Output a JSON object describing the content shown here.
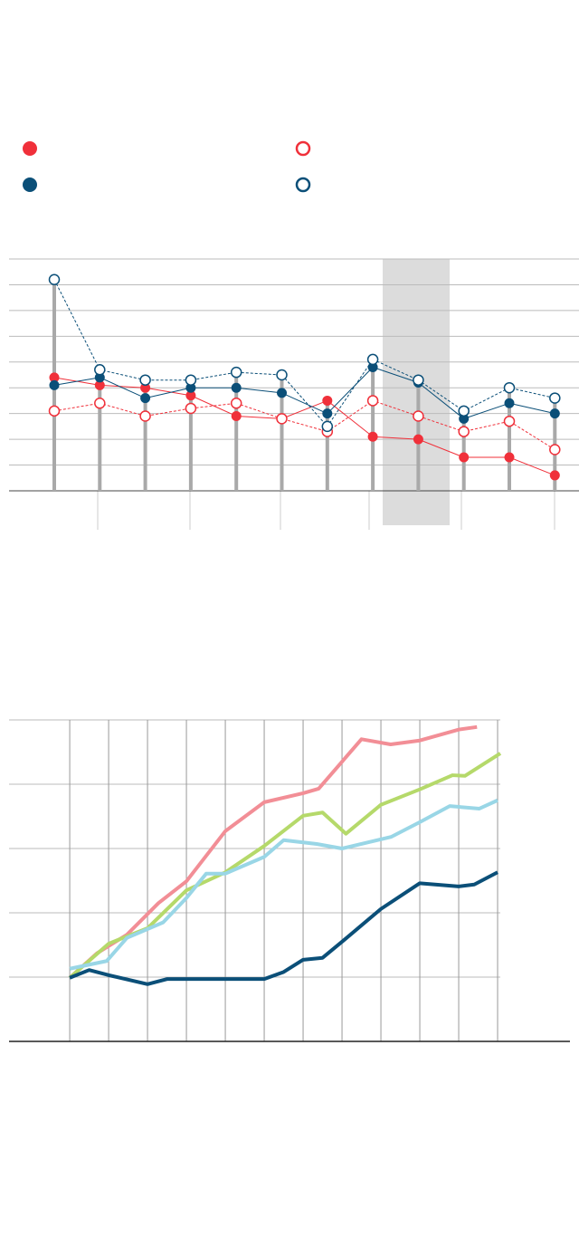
{
  "chart_data": [
    {
      "type": "line",
      "grid": true,
      "categories": [
        null,
        null,
        null,
        null,
        null,
        null,
        null,
        null,
        null,
        null,
        null,
        null
      ],
      "ylim": [
        0,
        9
      ],
      "yticks": [
        0,
        1,
        2,
        3,
        4,
        5,
        6,
        7,
        8,
        9
      ],
      "series": [
        {
          "color": "#f0303a",
          "marker": "filled",
          "dash": false,
          "values": [
            4.4,
            4.1,
            4.0,
            3.7,
            2.9,
            2.8,
            3.5,
            2.1,
            2.0,
            1.3,
            1.3,
            0.6
          ]
        },
        {
          "color": "#f0303a",
          "marker": "open",
          "dash": true,
          "values": [
            3.1,
            3.4,
            2.9,
            3.2,
            3.4,
            2.8,
            2.3,
            3.5,
            2.9,
            2.3,
            2.7,
            1.6
          ]
        },
        {
          "color": "#0b4f78",
          "marker": "filled",
          "dash": false,
          "values": [
            4.1,
            4.4,
            3.6,
            4.0,
            4.0,
            3.8,
            3.0,
            4.8,
            4.2,
            2.8,
            3.4,
            3.0
          ]
        },
        {
          "color": "#0b4f78",
          "marker": "open",
          "dash": true,
          "values": [
            8.2,
            4.7,
            4.3,
            4.3,
            4.6,
            4.5,
            2.5,
            5.1,
            4.3,
            3.1,
            4.0,
            3.6
          ]
        }
      ]
    },
    {
      "type": "line",
      "grid": true,
      "xlim": [
        -1.56,
        12.86
      ],
      "xticks": [
        0,
        1,
        2,
        3,
        4,
        5,
        6,
        7,
        8,
        9,
        10,
        11
      ],
      "ylim": [
        0,
        5
      ],
      "yticks": [
        1,
        2,
        3,
        4,
        5
      ],
      "series": [
        {
          "color": "#f28e96",
          "x": [
            0,
            0.7,
            1.47,
            2.28,
            3,
            4,
            5,
            6,
            6.4,
            7,
            7.5,
            8.25,
            9,
            10,
            10.47
          ],
          "values": [
            0.99,
            1.37,
            1.66,
            2.15,
            2.49,
            3.27,
            3.72,
            3.86,
            3.93,
            4.35,
            4.7,
            4.62,
            4.68,
            4.85,
            4.89
          ]
        },
        {
          "color": "#b5d96a",
          "x": [
            0,
            1,
            2,
            3,
            4,
            5,
            6,
            6.5,
            7.1,
            8,
            9,
            9.84,
            10.16,
            11.07
          ],
          "values": [
            0.99,
            1.52,
            1.76,
            2.35,
            2.63,
            3.04,
            3.51,
            3.56,
            3.23,
            3.68,
            3.92,
            4.14,
            4.13,
            4.48
          ]
        },
        {
          "color": "#99d6e6",
          "x": [
            0,
            0.95,
            1.47,
            2.4,
            3,
            3.51,
            4,
            5,
            5.5,
            6.35,
            7,
            8.26,
            9,
            9.77,
            10.53,
            11
          ],
          "values": [
            1.13,
            1.25,
            1.61,
            1.85,
            2.23,
            2.61,
            2.61,
            2.87,
            3.13,
            3.07,
            3.0,
            3.18,
            3.41,
            3.66,
            3.62,
            3.75
          ]
        },
        {
          "color": "#0b4f78",
          "x": [
            0,
            0.5,
            1,
            2,
            2.5,
            3,
            4,
            5,
            5.5,
            6,
            6.5,
            7,
            8,
            9,
            10,
            10.4,
            11
          ],
          "values": [
            0.99,
            1.11,
            1.03,
            0.89,
            0.97,
            0.97,
            0.97,
            0.97,
            1.08,
            1.27,
            1.3,
            1.55,
            2.06,
            2.46,
            2.41,
            2.44,
            2.63
          ]
        }
      ]
    }
  ]
}
